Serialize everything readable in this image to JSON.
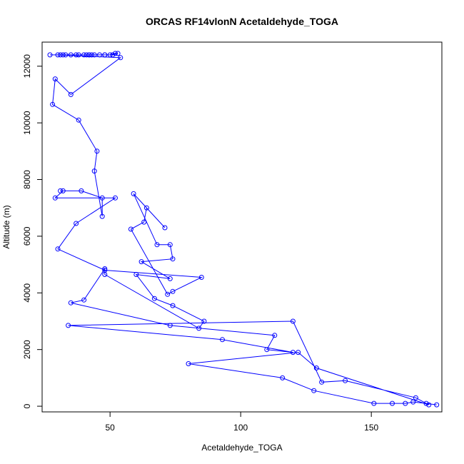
{
  "chart_data": {
    "type": "line",
    "title": "ORCAS RF14vlonN Acetaldehyde_TOGA",
    "xlabel": "Acetaldehyde_TOGA",
    "ylabel": "Altitude (m)",
    "xlim": [
      24,
      177
    ],
    "ylim": [
      -200,
      12850
    ],
    "xticks": [
      50,
      100,
      150
    ],
    "yticks": [
      0,
      2000,
      4000,
      6000,
      8000,
      10000,
      12000
    ],
    "series_color": "#0000ff",
    "marker": "open-circle",
    "grid": false,
    "series": [
      {
        "x": [
          27,
          31,
          33,
          37,
          40,
          42,
          44,
          48,
          50,
          52,
          53,
          51,
          48,
          46,
          43,
          42,
          41,
          38,
          35,
          32,
          30,
          54,
          35,
          29,
          28,
          38,
          45,
          44,
          47,
          47,
          39,
          31,
          32,
          29,
          52,
          37,
          30,
          48,
          85,
          74,
          72,
          58,
          63,
          64,
          71,
          59,
          68,
          73,
          74,
          62,
          73,
          60,
          67,
          74,
          86,
          84,
          48,
          48,
          40,
          35,
          73,
          113,
          110,
          120,
          93,
          34,
          120,
          131,
          140,
          167,
          172,
          129,
          122,
          80,
          116,
          128,
          151,
          158,
          163,
          166,
          171,
          175
        ],
        "y": [
          12400,
          12400,
          12400,
          12400,
          12400,
          12400,
          12400,
          12400,
          12400,
          12450,
          12450,
          12400,
          12400,
          12400,
          12400,
          12400,
          12400,
          12400,
          12400,
          12400,
          12400,
          12300,
          11000,
          11550,
          10650,
          10100,
          9000,
          8300,
          6700,
          7350,
          7600,
          7600,
          7600,
          7350,
          7350,
          6450,
          5550,
          4800,
          4550,
          4050,
          3950,
          6250,
          6500,
          7000,
          6300,
          7500,
          5700,
          5700,
          5200,
          5100,
          4500,
          4650,
          3800,
          3550,
          3000,
          2750,
          4650,
          4850,
          3750,
          3650,
          2850,
          2500,
          2000,
          1900,
          2350,
          2850,
          3000,
          850,
          900,
          300,
          50,
          1350,
          1900,
          1500,
          1000,
          550,
          100,
          100,
          100,
          150,
          100,
          50
        ]
      }
    ]
  }
}
